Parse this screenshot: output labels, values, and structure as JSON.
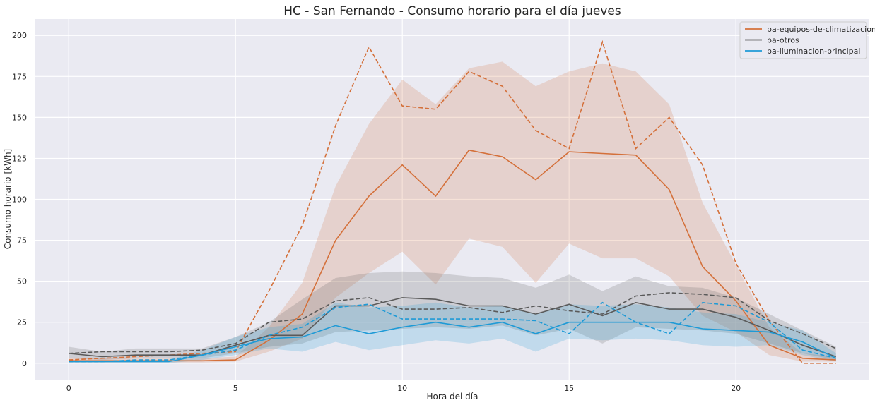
{
  "chart_data": {
    "type": "line",
    "title": "HC - San Fernando - Consumo horario para el día jueves",
    "xlabel": "Hora del día",
    "ylabel": "Consumo horario [kWh]",
    "xlim": [
      -1,
      24
    ],
    "ylim": [
      -10,
      210
    ],
    "xticks": [
      0,
      5,
      10,
      15,
      20
    ],
    "yticks": [
      0,
      25,
      50,
      75,
      100,
      125,
      150,
      175,
      200
    ],
    "grid": true,
    "legend_position": "top-right",
    "x": [
      0,
      1,
      2,
      3,
      4,
      5,
      6,
      7,
      8,
      9,
      10,
      11,
      12,
      13,
      14,
      15,
      16,
      17,
      18,
      19,
      20,
      21,
      22,
      23
    ],
    "series": [
      {
        "name": "pa-equipos-de-climatizacion",
        "color": "#d4703a",
        "mean": [
          1.5,
          1.5,
          1.5,
          1.5,
          1.5,
          2,
          14,
          30,
          75,
          102,
          121,
          102,
          130,
          126,
          112,
          129,
          128,
          127,
          106,
          59,
          38,
          11,
          3,
          2
        ],
        "band_low": [
          0.5,
          0.5,
          0.5,
          0.5,
          0.5,
          1,
          7,
          15,
          40,
          55,
          68,
          48,
          76,
          71,
          49,
          73,
          64,
          64,
          53,
          29,
          19,
          5,
          1,
          1
        ],
        "band_high": [
          3,
          3,
          3,
          3,
          3,
          4,
          22,
          49,
          108,
          146,
          173,
          158,
          180,
          184,
          169,
          178,
          183,
          178,
          158,
          98,
          60,
          22,
          6,
          4
        ],
        "dashed": [
          2,
          3,
          4,
          5,
          6,
          7,
          44,
          84,
          145,
          193,
          157,
          155,
          178,
          169,
          142,
          131,
          196,
          131,
          150,
          121,
          61,
          26,
          0,
          0
        ]
      },
      {
        "name": "pa-otros",
        "color": "#5a5a5a",
        "mean": [
          6,
          4,
          5,
          5,
          5,
          11,
          17,
          17,
          35,
          35,
          40,
          39,
          35,
          35,
          30,
          36,
          29,
          37,
          33,
          33,
          28,
          20,
          11,
          4
        ],
        "band_low": [
          3,
          2,
          3,
          3,
          3,
          6,
          10,
          12,
          19,
          20,
          21,
          22,
          21,
          23,
          17,
          21,
          12,
          22,
          21,
          20,
          18,
          12,
          6,
          2
        ],
        "band_high": [
          10,
          7,
          9,
          9,
          9,
          16,
          25,
          39,
          52,
          55,
          56,
          55,
          53,
          52,
          46,
          54,
          44,
          53,
          47,
          46,
          40,
          30,
          20,
          10
        ],
        "dashed": [
          6,
          7,
          7,
          7,
          8,
          12,
          25,
          27,
          38,
          40,
          33,
          33,
          34,
          31,
          35,
          32,
          30,
          41,
          43,
          42,
          40,
          26,
          18,
          9
        ]
      },
      {
        "name": "pa-iluminacion-principal",
        "color": "#1e9ad6",
        "mean": [
          1,
          1,
          1,
          1,
          5,
          10,
          15,
          16,
          23,
          18,
          22,
          25,
          22,
          25,
          18,
          25,
          25,
          25,
          25,
          21,
          20,
          19,
          13,
          3
        ],
        "band_low": [
          0,
          0,
          0,
          0,
          2,
          5,
          9,
          7,
          13,
          8,
          11,
          14,
          12,
          15,
          7,
          15,
          14,
          15,
          14,
          11,
          10,
          11,
          5,
          1
        ],
        "band_high": [
          2,
          2,
          2,
          2,
          8,
          16,
          22,
          24,
          37,
          34,
          35,
          37,
          34,
          35,
          30,
          36,
          35,
          36,
          34,
          31,
          30,
          25,
          20,
          6
        ],
        "dashed": [
          1,
          1,
          2,
          2,
          5,
          8,
          17,
          22,
          34,
          36,
          27,
          27,
          27,
          27,
          26,
          18,
          37,
          25,
          18,
          37,
          35,
          25,
          8,
          3
        ]
      }
    ]
  }
}
